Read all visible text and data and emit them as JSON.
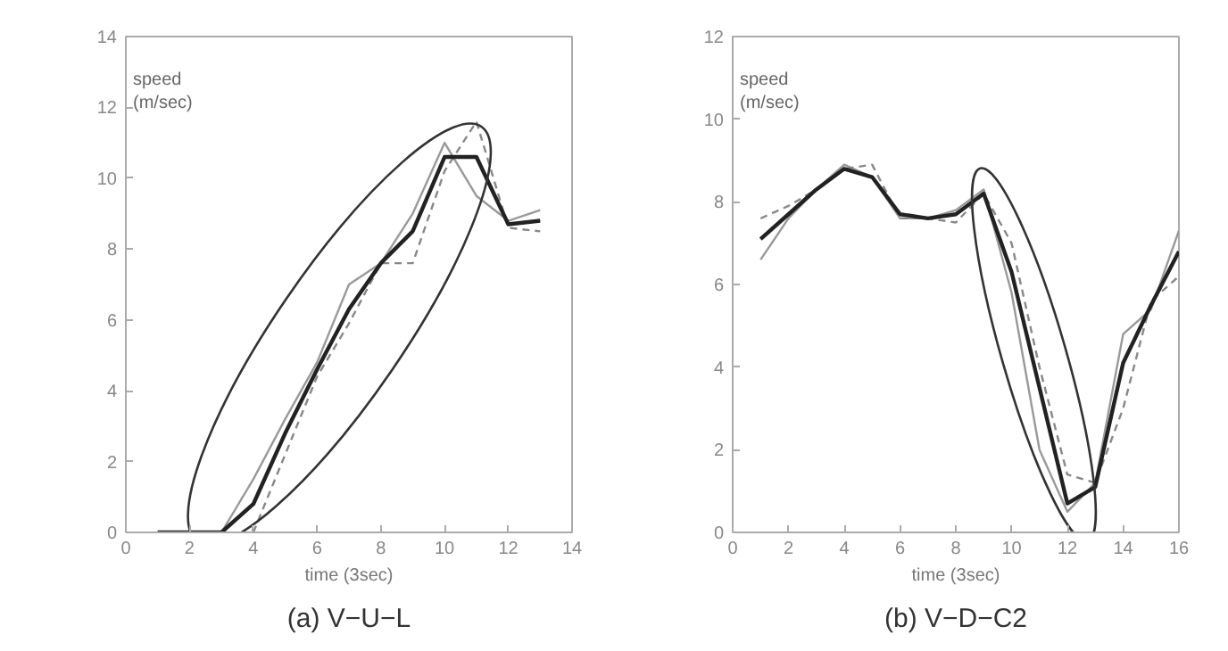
{
  "chart_data": [
    {
      "type": "line",
      "title": "(a) V−U−L",
      "xlabel": "time (3sec)",
      "ylabel": "speed (m/sec)",
      "xlim": [
        0,
        14
      ],
      "ylim": [
        0,
        14
      ],
      "xticks": [
        0,
        2,
        4,
        6,
        8,
        10,
        12,
        14
      ],
      "yticks": [
        0,
        2,
        4,
        6,
        8,
        10,
        12,
        14
      ],
      "grid": false,
      "series": [
        {
          "color": "#999999",
          "x": [
            1,
            2,
            3,
            4,
            5,
            6,
            7,
            8,
            9,
            10,
            11,
            12,
            13
          ],
          "values": [
            0,
            0,
            0,
            1.5,
            3.2,
            4.8,
            7,
            7.6,
            9,
            11,
            9.5,
            8.8,
            9.1
          ],
          "line_style": "solid"
        },
        {
          "color": "#888888",
          "x": [
            4,
            5,
            6,
            7,
            8,
            9,
            10,
            11,
            12,
            13
          ],
          "values": [
            0,
            2.2,
            4.4,
            5.9,
            7.6,
            7.6,
            10.2,
            11.6,
            8.6,
            8.5
          ],
          "line_style": "dashed"
        },
        {
          "color": "#222222",
          "x": [
            1,
            2,
            3,
            4,
            5,
            6,
            7,
            8,
            9,
            10,
            11,
            12,
            13
          ],
          "values": [
            0,
            0,
            0,
            0.8,
            2.8,
            4.6,
            6.3,
            7.6,
            8.5,
            10.6,
            10.6,
            8.7,
            8.8
          ],
          "line_style": "solid"
        }
      ]
    },
    {
      "type": "line",
      "title": "(b) V−D−C2",
      "xlabel": "time (3sec)",
      "ylabel": "speed (m/sec)",
      "xlim": [
        0,
        16
      ],
      "ylim": [
        0,
        12
      ],
      "xticks": [
        0,
        2,
        4,
        6,
        8,
        10,
        12,
        14,
        16
      ],
      "yticks": [
        0,
        2,
        4,
        6,
        8,
        10,
        12
      ],
      "grid": false,
      "series": [
        {
          "color": "#999999",
          "x": [
            1,
            2,
            3,
            4,
            5,
            6,
            7,
            8,
            9,
            10,
            11,
            12,
            13,
            14,
            15,
            16
          ],
          "values": [
            6.6,
            7.6,
            8.3,
            8.9,
            8.6,
            7.6,
            7.6,
            7.8,
            8.3,
            5.8,
            2,
            0.5,
            1.2,
            4.8,
            5.4,
            7.3
          ],
          "line_style": "solid"
        },
        {
          "color": "#888888",
          "x": [
            1,
            2,
            3,
            4,
            5,
            6,
            7,
            8,
            9,
            10,
            11,
            12,
            13,
            14,
            15,
            16
          ],
          "values": [
            7.6,
            7.9,
            8.3,
            8.8,
            8.9,
            7.6,
            7.6,
            7.5,
            8.2,
            7,
            4,
            1.4,
            1.2,
            3,
            5.6,
            6.2
          ],
          "line_style": "dashed"
        },
        {
          "color": "#222222",
          "x": [
            1,
            2,
            3,
            4,
            5,
            6,
            7,
            8,
            9,
            10,
            11,
            12,
            13,
            14,
            15,
            16
          ],
          "values": [
            7.1,
            7.7,
            8.3,
            8.8,
            8.6,
            7.7,
            7.6,
            7.7,
            8.2,
            6.3,
            3.5,
            0.7,
            1.1,
            4.1,
            5.5,
            6.8
          ],
          "line_style": "solid"
        }
      ]
    }
  ]
}
